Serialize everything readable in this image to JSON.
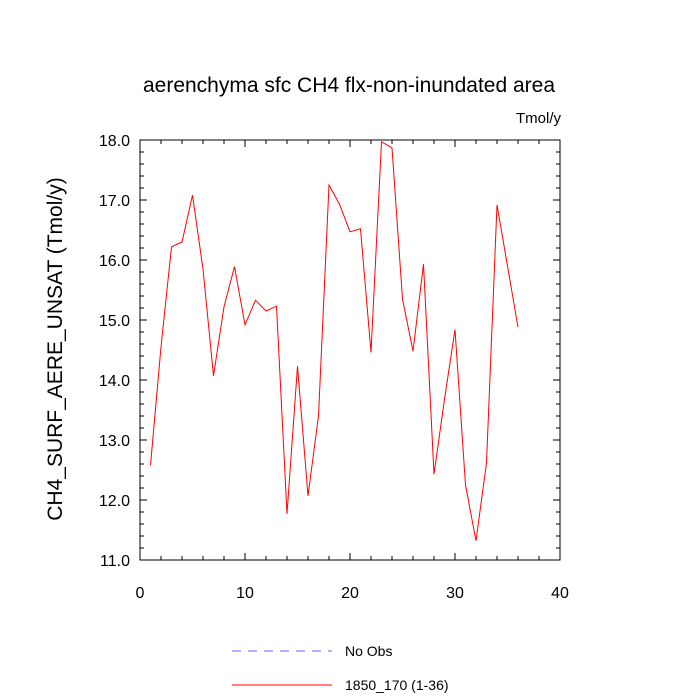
{
  "chart_data": {
    "type": "line",
    "title": "aerenchyma sfc CH4 flx-non-inundated area",
    "units": "Tmol/y",
    "xlabel": "",
    "ylabel": "CH4_SURF_AERE_UNSAT  (Tmol/y)",
    "xlim": [
      0,
      40
    ],
    "ylim": [
      11.0,
      18.0
    ],
    "x_ticks": [
      0,
      10,
      20,
      30,
      40
    ],
    "x_tick_labels": [
      "0",
      "10",
      "20",
      "30",
      "40"
    ],
    "y_ticks": [
      11.0,
      12.0,
      13.0,
      14.0,
      15.0,
      16.0,
      17.0,
      18.0
    ],
    "y_tick_labels": [
      "11.0",
      "12.0",
      "13.0",
      "14.0",
      "15.0",
      "16.0",
      "17.0",
      "18.0"
    ],
    "x_minor_step": 2,
    "y_minor_step": 0.2,
    "grid": false,
    "legend_position": "bottom-center",
    "series": [
      {
        "name": "No Obs",
        "color": "#6666ff",
        "dash": "dashed",
        "x": [],
        "values": []
      },
      {
        "name": "1850_170 (1-36)",
        "color": "#ff0000",
        "dash": "solid",
        "x": [
          1,
          2,
          3,
          4,
          5,
          6,
          7,
          8,
          9,
          10,
          11,
          12,
          13,
          14,
          15,
          16,
          17,
          18,
          19,
          20,
          21,
          22,
          23,
          24,
          25,
          26,
          27,
          28,
          29,
          30,
          31,
          32,
          33,
          34,
          35,
          36
        ],
        "values": [
          12.58,
          14.55,
          16.22,
          16.3,
          17.08,
          15.85,
          14.07,
          15.22,
          15.89,
          14.92,
          15.33,
          15.15,
          15.23,
          11.77,
          14.23,
          12.07,
          13.4,
          17.25,
          16.93,
          16.47,
          16.52,
          14.46,
          17.97,
          17.87,
          15.35,
          14.48,
          15.93,
          12.43,
          13.68,
          14.84,
          12.25,
          11.32,
          12.62,
          16.92,
          15.9,
          14.88
        ]
      }
    ]
  }
}
